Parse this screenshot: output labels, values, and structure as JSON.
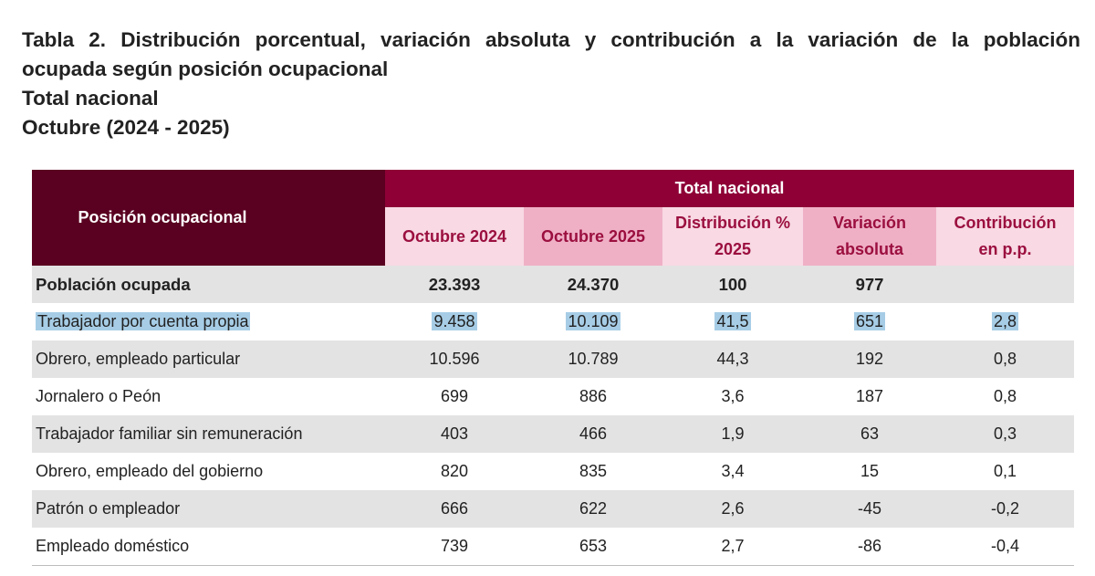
{
  "title": {
    "line1": "Tabla 2. Distribución porcentual, variación absoluta y contribución a la variación de la población",
    "line2": "ocupada según posición ocupacional",
    "line3": "Total nacional",
    "line4": "Octubre (2024 - 2025)"
  },
  "table": {
    "header_position": "Posición ocupacional",
    "header_group": "Total nacional",
    "columns": [
      {
        "line1": "Octubre 2024",
        "line2": ""
      },
      {
        "line1": "Octubre 2025",
        "line2": ""
      },
      {
        "line1": "Distribución %",
        "line2": "2025"
      },
      {
        "line1": "Variación",
        "line2": "absoluta"
      },
      {
        "line1": "Contribución",
        "line2": "en p.p."
      }
    ],
    "rows": [
      [
        "Población ocupada",
        "23.393",
        "24.370",
        "100",
        "977",
        ""
      ],
      [
        "Trabajador por cuenta propia",
        "9.458",
        "10.109",
        "41,5",
        "651",
        "2,8"
      ],
      [
        "Obrero, empleado particular",
        "10.596",
        "10.789",
        "44,3",
        "192",
        "0,8"
      ],
      [
        "Jornalero o Peón",
        "699",
        "886",
        "3,6",
        "187",
        "0,8"
      ],
      [
        "Trabajador familiar sin remuneración",
        "403",
        "466",
        "1,9",
        "63",
        "0,3"
      ],
      [
        "Obrero, empleado del gobierno",
        "820",
        "835",
        "3,4",
        "15",
        "0,1"
      ],
      [
        "Patrón o empleador",
        "666",
        "622",
        "2,6",
        "-45",
        "-0,2"
      ],
      [
        "Empleado doméstico",
        "739",
        "653",
        "2,7",
        "-86",
        "-0,4"
      ]
    ]
  },
  "colors": {
    "header_dark": "#5a0020",
    "header_group": "#8e0036",
    "subheader_light": "#f8d9e4",
    "subheader_dark": "#efb0c6",
    "row_gray": "#e3e3e3",
    "selection_highlight": "#a7cde6"
  }
}
